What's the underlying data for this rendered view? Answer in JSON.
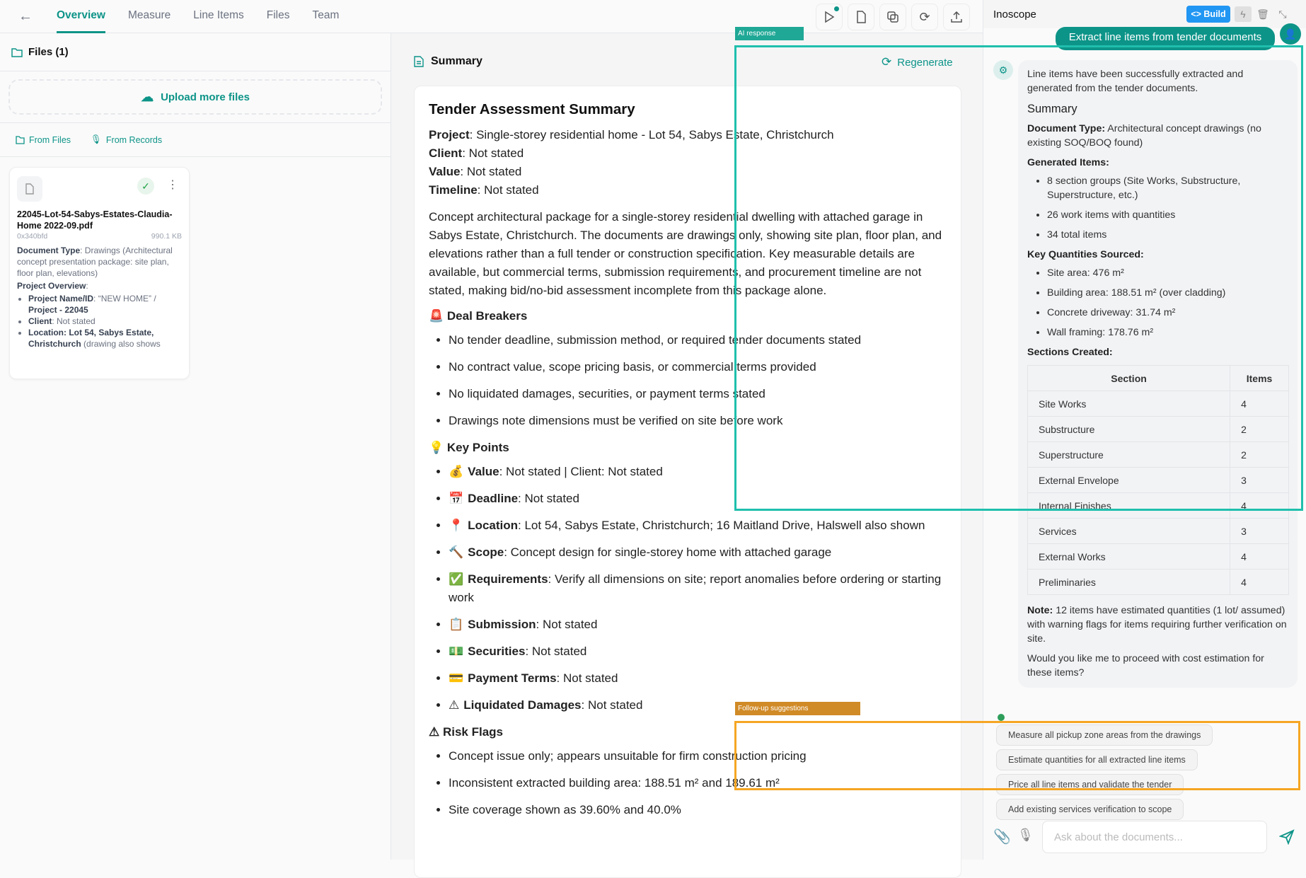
{
  "nav": {
    "tabs": [
      "Overview",
      "Measure",
      "Line Items",
      "Files",
      "Team"
    ],
    "active": "Overview"
  },
  "left": {
    "files_title": "Files (1)",
    "upload_label": "Upload more files",
    "from_files": "From Files",
    "from_records": "From Records",
    "file": {
      "name": "22045-Lot-54-Sabys-Estates-Claudia-Home 2022-09.pdf",
      "hash": "0x340bfd",
      "size": "990.1 KB",
      "doc_type_label": "Document Type",
      "doc_type_value": ": Drawings (Architectural concept presentation package: site plan, floor plan, elevations)",
      "overview_label": "Project Overview",
      "bullets": [
        {
          "label": "Project Name/ID",
          "value": ": “NEW HOME” / ",
          "extra": "Project - 22045"
        },
        {
          "label": "Client",
          "value": ": Not stated",
          "extra": ""
        },
        {
          "label": "Location: Lot 54, Sabys Estate, Christchurch",
          "value": " (drawing also shows",
          "extra": ""
        }
      ]
    }
  },
  "main": {
    "section_title": "Summary",
    "regenerate": "Regenerate",
    "doc_title": "Tender Assessment Summary",
    "facts": [
      {
        "label": "Project",
        "value": ": Single-storey residential home - Lot 54, Sabys Estate, Christchurch"
      },
      {
        "label": "Client",
        "value": ": Not stated"
      },
      {
        "label": "Value",
        "value": ": Not stated"
      },
      {
        "label": "Timeline",
        "value": ": Not stated"
      }
    ],
    "paragraph": "Concept architectural package for a single-storey residential dwelling with attached garage in Sabys Estate, Christchurch. The documents are drawings only, showing site plan, floor plan, and elevations rather than a full tender or construction specification. Key measurable details are available, but commercial terms, submission requirements, and procurement timeline are not stated, making bid/no-bid assessment incomplete from this package alone.",
    "deal_breakers_title": "🚨 Deal Breakers",
    "deal_breakers": [
      "No tender deadline, submission method, or required tender documents stated",
      "No contract value, scope pricing basis, or commercial terms provided",
      "No liquidated damages, securities, or payment terms stated",
      "Drawings note dimensions must be verified on site before work"
    ],
    "key_points_title": "💡 Key Points",
    "key_points": [
      {
        "emoji": "💰",
        "label": "Value",
        "value": ": Not stated | Client: Not stated"
      },
      {
        "emoji": "📅",
        "label": "Deadline",
        "value": ": Not stated"
      },
      {
        "emoji": "📍",
        "label": "Location",
        "value": ": Lot 54, Sabys Estate, Christchurch; 16 Maitland Drive, Halswell also shown"
      },
      {
        "emoji": "🔨",
        "label": "Scope",
        "value": ": Concept design for single-storey home with attached garage"
      },
      {
        "emoji": "✅",
        "label": "Requirements",
        "value": ": Verify all dimensions on site; report anomalies before ordering or starting work"
      },
      {
        "emoji": "📋",
        "label": "Submission",
        "value": ": Not stated"
      },
      {
        "emoji": "💵",
        "label": "Securities",
        "value": ": Not stated"
      },
      {
        "emoji": "💳",
        "label": "Payment Terms",
        "value": ": Not stated"
      },
      {
        "emoji": "⚠",
        "label": "Liquidated Damages",
        "value": ": Not stated"
      }
    ],
    "risk_flags_title": "⚠ Risk Flags",
    "risk_flags": [
      "Concept issue only; appears unsuitable for firm construction pricing",
      "Inconsistent extracted building area: 188.51 m² and 189.61 m²",
      "Site coverage shown as 39.60% and 40.0%"
    ]
  },
  "chat": {
    "title": "Inoscope",
    "build_label": "Build",
    "user_message": "Extract line items from tender documents",
    "response": {
      "intro": "Line items have been successfully extracted and generated from the tender documents.",
      "summary_heading": "Summary",
      "doc_type_label": "Document Type:",
      "doc_type_value": " Architectural concept drawings (no existing SOQ/BOQ found)",
      "generated_label": "Generated Items:",
      "generated": [
        "8 section groups (Site Works, Substructure, Superstructure, etc.)",
        "26 work items with quantities",
        "34 total items"
      ],
      "quantities_label": "Key Quantities Sourced:",
      "quantities": [
        "Site area: 476 m²",
        "Building area: 188.51 m² (over cladding)",
        "Concrete driveway: 31.74 m²",
        "Wall framing: 178.76 m²"
      ],
      "sections_label": "Sections Created:",
      "table_headers": [
        "Section",
        "Items"
      ],
      "table_rows": [
        [
          "Site Works",
          "4"
        ],
        [
          "Substructure",
          "2"
        ],
        [
          "Superstructure",
          "2"
        ],
        [
          "External Envelope",
          "3"
        ],
        [
          "Internal Finishes",
          "4"
        ],
        [
          "Services",
          "3"
        ],
        [
          "External Works",
          "4"
        ],
        [
          "Preliminaries",
          "4"
        ]
      ],
      "note_label": "Note:",
      "note_value": " 12 items have estimated quantities (1 lot/ assumed) with warning flags for items requiring further verification on site.",
      "question": "Would you like me to proceed with cost estimation for these items?"
    },
    "suggestions": [
      "Measure all pickup zone areas from the drawings",
      "Estimate quantities for all extracted line items",
      "Price all line items and validate the tender",
      "Add existing services verification to scope"
    ],
    "input_placeholder": "Ask about the documents..."
  },
  "overlays": {
    "ai_response": "AI response",
    "followups": "Follow-up suggestions",
    "ai_color": "#1fbfad",
    "followup_color": "#f5a623"
  }
}
